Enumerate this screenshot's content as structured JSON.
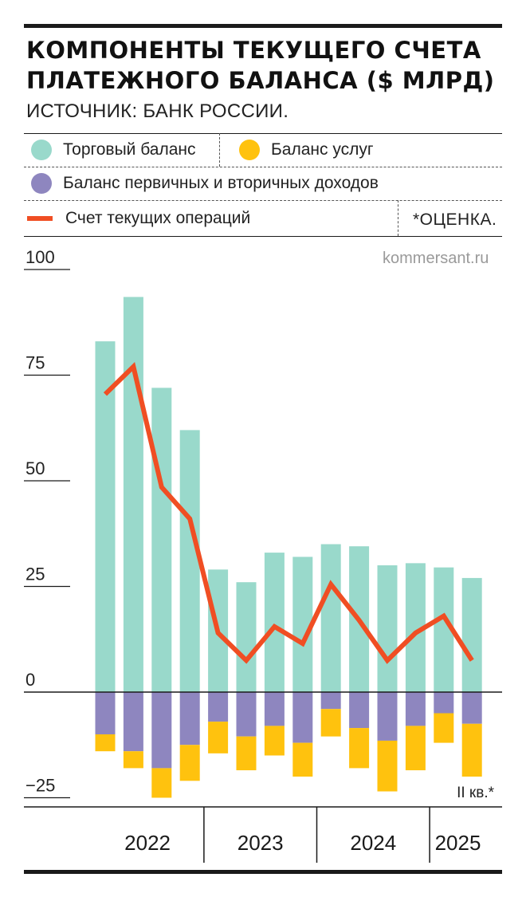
{
  "header": {
    "title": "КОМПОНЕНТЫ ТЕКУЩЕГО СЧЕТА ПЛАТЕЖНОГО БАЛАНСА ($ МЛРД)",
    "source": "ИСТОЧНИК: БАНК РОССИИ."
  },
  "legend": {
    "trade": "Торговый баланс",
    "services": "Баланс услуг",
    "incomes": "Баланс первичных и вторичных доходов",
    "current_account": "Счет текущих операций",
    "note": "*ОЦЕНКА."
  },
  "watermark": "kommersant.ru",
  "colors": {
    "trade": "#99d9cb",
    "services": "#ffc20e",
    "incomes": "#8e86bf",
    "current_account": "#f04e23"
  },
  "chart_data": {
    "type": "bar",
    "stacked": true,
    "x": [
      "2022 I",
      "2022 II",
      "2022 III",
      "2022 IV",
      "2023 I",
      "2023 II",
      "2023 III",
      "2023 IV",
      "2024 I",
      "2024 II",
      "2024 III",
      "2024 IV",
      "2025 I",
      "2025 II"
    ],
    "year_labels": [
      "2022",
      "2023",
      "2024",
      "2025"
    ],
    "year_groups": [
      4,
      4,
      4,
      2
    ],
    "ylim": [
      -25,
      100
    ],
    "yticks": [
      100,
      75,
      50,
      25,
      0,
      -25
    ],
    "ytick_labels": [
      "100",
      "75",
      "50",
      "25",
      "0",
      "−25"
    ],
    "last_point_label": "II кв.*",
    "series": [
      {
        "name": "Торговый баланс",
        "type": "bar",
        "values": [
          83,
          93.5,
          72,
          62,
          29,
          26,
          33,
          32,
          35,
          34.5,
          30,
          30.5,
          29.5,
          27
        ]
      },
      {
        "name": "Баланс первичных и вторичных доходов",
        "type": "bar",
        "values": [
          -10,
          -14,
          -18,
          -12.5,
          -7,
          -10.5,
          -8,
          -12,
          -4,
          -8.5,
          -11.5,
          -8,
          -5,
          -7.5
        ]
      },
      {
        "name": "Баланс услуг",
        "type": "bar",
        "values": [
          -4,
          -4,
          -7,
          -8.5,
          -7.5,
          -8,
          -7,
          -8,
          -6.5,
          -9.5,
          -12,
          -10.5,
          -7,
          -12.5
        ]
      },
      {
        "name": "Счет текущих операций",
        "type": "line",
        "values": [
          70.5,
          77,
          48.5,
          41,
          14,
          7.5,
          15.5,
          11.5,
          25.5,
          17,
          7.5,
          14,
          18,
          7.5
        ]
      }
    ]
  }
}
